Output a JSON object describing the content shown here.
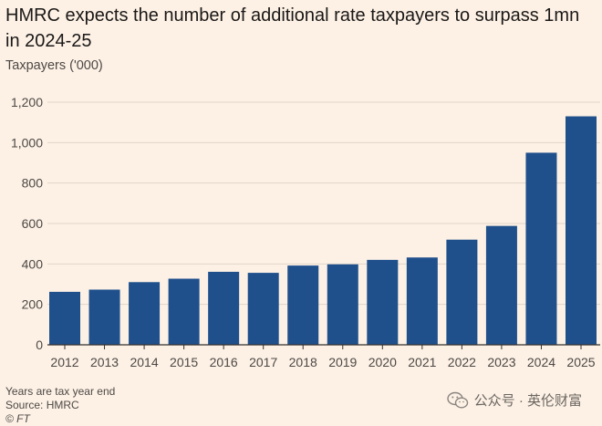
{
  "chart_data": {
    "type": "bar",
    "title": "HMRC expects the number of additional rate taxpayers to surpass 1mn in 2024-25",
    "ylabel": "Taxpayers ('000)",
    "xlabel": "",
    "categories": [
      "2012",
      "2013",
      "2014",
      "2015",
      "2016",
      "2017",
      "2018",
      "2019",
      "2020",
      "2021",
      "2022",
      "2023",
      "2024",
      "2025"
    ],
    "values": [
      262,
      273,
      310,
      327,
      361,
      356,
      392,
      398,
      420,
      432,
      520,
      588,
      950,
      1130
    ],
    "ylim": [
      0,
      1200
    ],
    "yticks": [
      0,
      200,
      400,
      600,
      800,
      1000,
      1200
    ],
    "ytick_labels": [
      "0",
      "200",
      "400",
      "600",
      "800",
      "1,000",
      "1,200"
    ],
    "grid": true,
    "bar_color": "#1f508c"
  },
  "footer": {
    "note": "Years are tax year end",
    "source": "Source: HMRC",
    "copyright": "© FT"
  },
  "watermark": {
    "text": "公众号 · 英伦财富",
    "icon": "wechat-icon"
  },
  "colors": {
    "background": "#fdf1e5",
    "bar": "#1f508c",
    "grid": "#e1d5c9",
    "axis": "#33302e"
  }
}
